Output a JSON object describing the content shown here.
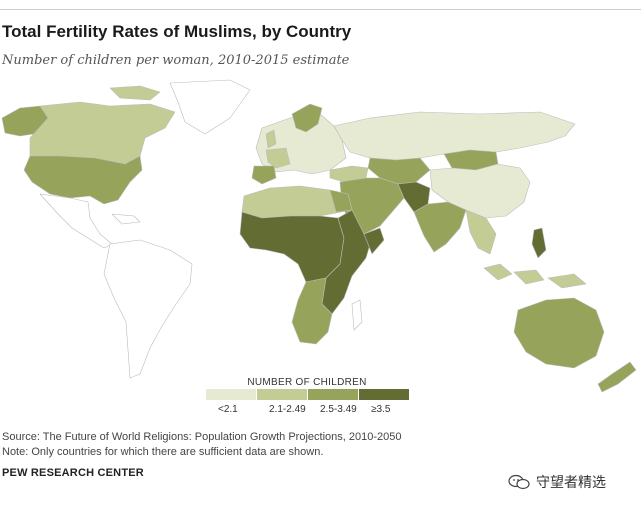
{
  "title": "Total Fertility Rates of Muslims, by Country",
  "subtitle": "Number of children per woman, 2010-2015 estimate",
  "legend": {
    "title": "NUMBER OF CHILDREN",
    "items": [
      {
        "label": "<2.1",
        "color": "#e6ead3"
      },
      {
        "label": "2.1-2.49",
        "color": "#c3cc95"
      },
      {
        "label": "2.5-3.49",
        "color": "#95a45a"
      },
      {
        "label": "≥3.5",
        "color": "#636d33"
      }
    ]
  },
  "source": "Source: The Future of World Religions: Population Growth Projections, 2010-2050",
  "note": "Note: Only countries for which there are sufficient data are shown.",
  "org": "PEW RESEARCH CENTER",
  "watermark": "守望者精选",
  "colors": {
    "no_data": "#ffffff",
    "border": "#bcbcbc"
  },
  "regions": [
    {
      "name": "North America",
      "band": "2.1-2.49"
    },
    {
      "name": "United States",
      "band": "2.5-3.49"
    },
    {
      "name": "Greenland",
      "band": "no data"
    },
    {
      "name": "Mexico & Central America",
      "band": "no data"
    },
    {
      "name": "South America",
      "band": "no data"
    },
    {
      "name": "Europe",
      "band": "<2.1"
    },
    {
      "name": "Russia & Central Asia north",
      "band": "<2.1"
    },
    {
      "name": "Central Asia",
      "band": "2.5-3.49"
    },
    {
      "name": "China",
      "band": "2.1-2.49"
    },
    {
      "name": "Middle East",
      "band": "2.5-3.49"
    },
    {
      "name": "South Asia",
      "band": "2.5-3.49"
    },
    {
      "name": "North Africa",
      "band": "2.1-2.49"
    },
    {
      "name": "West & Central Africa",
      "band": "≥3.5"
    },
    {
      "name": "East Africa",
      "band": "≥3.5"
    },
    {
      "name": "Southern Africa",
      "band": "2.5-3.49"
    },
    {
      "name": "Southeast Asia",
      "band": "2.1-2.49"
    },
    {
      "name": "Australia",
      "band": "2.5-3.49"
    },
    {
      "name": "New Zealand",
      "band": "2.5-3.49"
    }
  ]
}
